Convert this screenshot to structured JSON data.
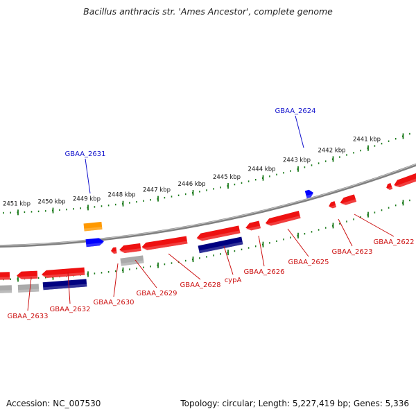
{
  "title": "Bacillus anthracis str. 'Ames Ancestor', complete genome",
  "footer": {
    "accession": "Accession: NC_007530",
    "summary": "Topology: circular; Length: 5,227,419 bp; Genes: 5,336"
  },
  "colors": {
    "forward_label": "#1010cc",
    "reverse_label": "#cc1111",
    "tick_marks": "#1a7a1a",
    "backbone": "#808080",
    "cds": "#ee1111",
    "gene_blue": "#000080",
    "gene_grey": "#aaaaaa",
    "gene_orange": "#ff9900",
    "gene_bright_blue": "#0000ff"
  },
  "scale_labels": [
    "2451 kbp",
    "2450 kbp",
    "2449 kbp",
    "2448 kbp",
    "2447 kbp",
    "2446 kbp",
    "2445 kbp",
    "2444 kbp",
    "2443 kbp",
    "2442 kbp",
    "2441 kbp"
  ],
  "forward_labels": [
    "GBAA_2631",
    "GBAA_2624"
  ],
  "reverse_labels": [
    "GBAA_2633",
    "GBAA_2632",
    "GBAA_2630",
    "GBAA_2629",
    "GBAA_2628",
    "cypA",
    "GBAA_2626",
    "GBAA_2625",
    "GBAA_2623",
    "GBAA_2622"
  ]
}
